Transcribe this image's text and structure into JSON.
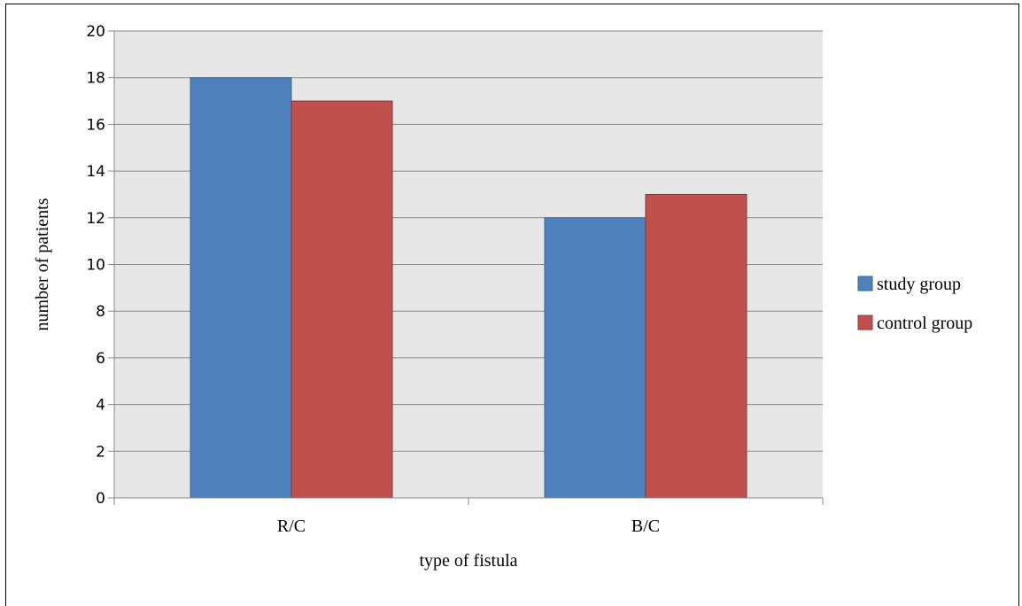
{
  "chart_data": {
    "type": "bar",
    "title": "",
    "xlabel": "type of fistula",
    "ylabel": "number of patients",
    "categories": [
      "R/C",
      "B/C"
    ],
    "series": [
      {
        "name": "study group",
        "values": [
          18,
          12
        ],
        "color": "#4f81bd",
        "stroke": "#3a6596"
      },
      {
        "name": "control group",
        "values": [
          17,
          13
        ],
        "color": "#c0504d",
        "stroke": "#8c3836"
      }
    ],
    "ylim": [
      0,
      20
    ],
    "yticks": [
      0,
      2,
      4,
      6,
      8,
      10,
      12,
      14,
      16,
      18,
      20
    ],
    "grid": true,
    "plot_background": "#e6e6e6",
    "legend_position": "right"
  }
}
